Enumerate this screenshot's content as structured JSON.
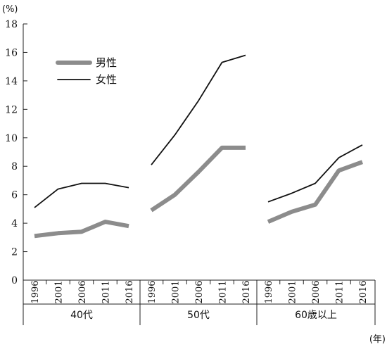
{
  "chart_data": {
    "type": "line",
    "y_unit": "(%)",
    "x_unit": "(年)",
    "ylim": [
      0,
      18
    ],
    "yticks": [
      0,
      2,
      4,
      6,
      8,
      10,
      12,
      14,
      16,
      18
    ],
    "grid": false,
    "legend_position": "top-left",
    "groups": [
      {
        "label": "40代",
        "years": [
          "1996",
          "2001",
          "2006",
          "2011",
          "2016"
        ]
      },
      {
        "label": "50代",
        "years": [
          "1996",
          "2001",
          "2006",
          "2011",
          "2016"
        ]
      },
      {
        "label": "60歳以上",
        "years": [
          "1996",
          "2001",
          "2006",
          "2011",
          "2016"
        ]
      }
    ],
    "series": [
      {
        "name": "男性",
        "color": "#8c8c8c",
        "values": [
          [
            3.1,
            3.3,
            3.4,
            4.1,
            3.8
          ],
          [
            4.9,
            6.0,
            7.6,
            9.3,
            9.3
          ],
          [
            4.1,
            4.8,
            5.3,
            7.7,
            8.3
          ]
        ]
      },
      {
        "name": "女性",
        "color": "#111111",
        "values": [
          [
            5.1,
            6.4,
            6.8,
            6.8,
            6.5
          ],
          [
            8.1,
            10.2,
            12.6,
            15.3,
            15.8
          ],
          [
            5.5,
            6.1,
            6.8,
            8.6,
            9.5
          ]
        ]
      }
    ]
  }
}
